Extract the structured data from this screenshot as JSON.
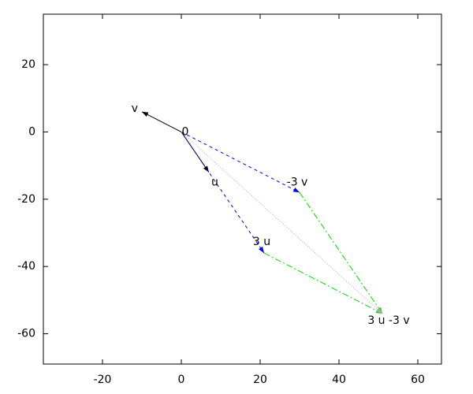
{
  "chart_data": {
    "type": "vector",
    "xlim": [
      -35,
      66
    ],
    "ylim": [
      -69,
      35
    ],
    "xticks": [
      -20,
      0,
      20,
      40,
      60
    ],
    "yticks": [
      -60,
      -40,
      -20,
      0,
      20
    ],
    "grid": false,
    "series": [
      {
        "x": [
          0,
          -10
        ],
        "y": [
          0,
          6
        ],
        "color": "#000000",
        "style": "solid"
      },
      {
        "x": [
          0,
          7
        ],
        "y": [
          0,
          -12
        ],
        "color": "#000000",
        "style": "solid"
      },
      {
        "x": [
          0,
          30
        ],
        "y": [
          0,
          -18
        ],
        "color": "#0000ff",
        "style": "dashed"
      },
      {
        "x": [
          0,
          21
        ],
        "y": [
          0,
          -36
        ],
        "color": "#0000ff",
        "style": "dashed"
      },
      {
        "x": [
          30,
          51
        ],
        "y": [
          -18,
          -54
        ],
        "color": "#00dd00",
        "style": "dashdot"
      },
      {
        "x": [
          21,
          51
        ],
        "y": [
          -36,
          -54
        ],
        "color": "#00dd00",
        "style": "dashdot"
      },
      {
        "x": [
          0,
          51
        ],
        "y": [
          0,
          -54
        ],
        "color": "#aaaaaa",
        "style": "dotted"
      }
    ],
    "points": [
      {
        "label": "0",
        "x": 0,
        "y": 0
      },
      {
        "label": "v",
        "x": -10,
        "y": 6
      },
      {
        "label": "u",
        "x": 7,
        "y": -12
      },
      {
        "label": "-3 v",
        "x": 30,
        "y": -18
      },
      {
        "label": "3 u",
        "x": 21,
        "y": -36
      },
      {
        "label": "3 u -3 v",
        "x": 51,
        "y": -54
      }
    ]
  }
}
